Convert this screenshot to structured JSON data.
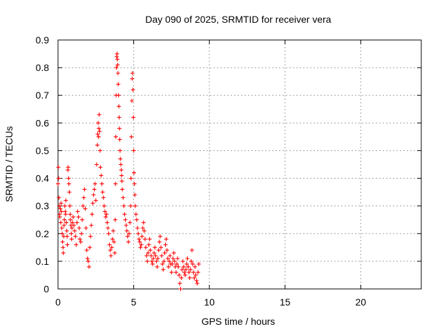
{
  "chart_data": {
    "type": "scatter",
    "title": "Day 090 of 2025, SRMTID for receiver vera",
    "xlabel": "GPS time / hours",
    "ylabel": "SRMTID / TECUs",
    "xlim": [
      0,
      24
    ],
    "ylim": [
      0,
      0.9
    ],
    "xticks": [
      0,
      5,
      10,
      15,
      20
    ],
    "yticks": [
      0,
      0.1,
      0.2,
      0.3,
      0.4,
      0.5,
      0.6,
      0.7,
      0.8,
      0.9
    ],
    "xtick_labels": [
      "0",
      "5",
      "10",
      "15",
      "20"
    ],
    "ytick_labels": [
      "0",
      "0.1",
      "0.2",
      "0.3",
      "0.4",
      "0.5",
      "0.6",
      "0.7",
      "0.8",
      "0.9"
    ],
    "grid": true,
    "marker": "+",
    "color": "#ff0000",
    "series": [
      {
        "name": "SRMTID",
        "points": [
          [
            0.0,
            0.38
          ],
          [
            0.02,
            0.44
          ],
          [
            0.04,
            0.4
          ],
          [
            0.06,
            0.33
          ],
          [
            0.08,
            0.3
          ],
          [
            0.1,
            0.27
          ],
          [
            0.12,
            0.26
          ],
          [
            0.15,
            0.29
          ],
          [
            0.18,
            0.24
          ],
          [
            0.2,
            0.31
          ],
          [
            0.22,
            0.28
          ],
          [
            0.25,
            0.22
          ],
          [
            0.28,
            0.2
          ],
          [
            0.3,
            0.17
          ],
          [
            0.33,
            0.15
          ],
          [
            0.35,
            0.13
          ],
          [
            0.38,
            0.19
          ],
          [
            0.4,
            0.23
          ],
          [
            0.42,
            0.25
          ],
          [
            0.45,
            0.3
          ],
          [
            0.48,
            0.28
          ],
          [
            0.5,
            0.27
          ],
          [
            0.52,
            0.32
          ],
          [
            0.55,
            0.24
          ],
          [
            0.58,
            0.21
          ],
          [
            0.6,
            0.19
          ],
          [
            0.62,
            0.16
          ],
          [
            0.65,
            0.43
          ],
          [
            0.67,
            0.44
          ],
          [
            0.7,
            0.4
          ],
          [
            0.72,
            0.38
          ],
          [
            0.75,
            0.35
          ],
          [
            0.78,
            0.3
          ],
          [
            0.8,
            0.27
          ],
          [
            0.82,
            0.25
          ],
          [
            0.85,
            0.23
          ],
          [
            0.88,
            0.2
          ],
          [
            0.9,
            0.18
          ],
          [
            0.92,
            0.22
          ],
          [
            0.95,
            0.24
          ],
          [
            1.0,
            0.26
          ],
          [
            1.05,
            0.23
          ],
          [
            1.1,
            0.21
          ],
          [
            1.15,
            0.19
          ],
          [
            1.2,
            0.16
          ],
          [
            1.25,
            0.24
          ],
          [
            1.3,
            0.28
          ],
          [
            1.35,
            0.26
          ],
          [
            1.4,
            0.22
          ],
          [
            1.45,
            0.18
          ],
          [
            1.5,
            0.17
          ],
          [
            1.55,
            0.2
          ],
          [
            1.6,
            0.25
          ],
          [
            1.65,
            0.3
          ],
          [
            1.7,
            0.33
          ],
          [
            1.75,
            0.36
          ],
          [
            1.8,
            0.29
          ],
          [
            1.85,
            0.22
          ],
          [
            1.9,
            0.14
          ],
          [
            1.95,
            0.11
          ],
          [
            2.0,
            0.1
          ],
          [
            2.05,
            0.08
          ],
          [
            2.1,
            0.15
          ],
          [
            2.15,
            0.19
          ],
          [
            2.2,
            0.23
          ],
          [
            2.25,
            0.27
          ],
          [
            2.3,
            0.31
          ],
          [
            2.35,
            0.34
          ],
          [
            2.4,
            0.36
          ],
          [
            2.45,
            0.38
          ],
          [
            2.5,
            0.32
          ],
          [
            2.55,
            0.45
          ],
          [
            2.6,
            0.52
          ],
          [
            2.62,
            0.56
          ],
          [
            2.65,
            0.6
          ],
          [
            2.68,
            0.55
          ],
          [
            2.7,
            0.58
          ],
          [
            2.72,
            0.63
          ],
          [
            2.75,
            0.57
          ],
          [
            2.78,
            0.5
          ],
          [
            2.8,
            0.44
          ],
          [
            2.85,
            0.41
          ],
          [
            2.9,
            0.38
          ],
          [
            2.95,
            0.35
          ],
          [
            3.0,
            0.33
          ],
          [
            3.05,
            0.3
          ],
          [
            3.1,
            0.28
          ],
          [
            3.15,
            0.26
          ],
          [
            3.2,
            0.27
          ],
          [
            3.25,
            0.24
          ],
          [
            3.3,
            0.22
          ],
          [
            3.35,
            0.2
          ],
          [
            3.4,
            0.16
          ],
          [
            3.45,
            0.14
          ],
          [
            3.5,
            0.12
          ],
          [
            3.55,
            0.15
          ],
          [
            3.6,
            0.18
          ],
          [
            3.65,
            0.21
          ],
          [
            3.7,
            0.17
          ],
          [
            3.75,
            0.13
          ],
          [
            3.78,
            0.25
          ],
          [
            3.8,
            0.38
          ],
          [
            3.82,
            0.55
          ],
          [
            3.84,
            0.7
          ],
          [
            3.86,
            0.8
          ],
          [
            3.88,
            0.84
          ],
          [
            3.9,
            0.85
          ],
          [
            3.92,
            0.83
          ],
          [
            3.94,
            0.81
          ],
          [
            3.96,
            0.78
          ],
          [
            3.98,
            0.74
          ],
          [
            4.0,
            0.7
          ],
          [
            4.02,
            0.66
          ],
          [
            4.04,
            0.62
          ],
          [
            4.06,
            0.58
          ],
          [
            4.08,
            0.54
          ],
          [
            4.1,
            0.5
          ],
          [
            4.12,
            0.47
          ],
          [
            4.15,
            0.45
          ],
          [
            4.18,
            0.43
          ],
          [
            4.2,
            0.41
          ],
          [
            4.22,
            0.39
          ],
          [
            4.25,
            0.36
          ],
          [
            4.3,
            0.33
          ],
          [
            4.35,
            0.3
          ],
          [
            4.4,
            0.27
          ],
          [
            4.45,
            0.25
          ],
          [
            4.5,
            0.23
          ],
          [
            4.55,
            0.21
          ],
          [
            4.6,
            0.19
          ],
          [
            4.65,
            0.17
          ],
          [
            4.7,
            0.2
          ],
          [
            4.75,
            0.24
          ],
          [
            4.8,
            0.3
          ],
          [
            4.82,
            0.4
          ],
          [
            4.85,
            0.55
          ],
          [
            4.88,
            0.68
          ],
          [
            4.9,
            0.76
          ],
          [
            4.92,
            0.78
          ],
          [
            4.95,
            0.72
          ],
          [
            4.98,
            0.62
          ],
          [
            5.0,
            0.5
          ],
          [
            5.02,
            0.42
          ],
          [
            5.05,
            0.38
          ],
          [
            5.08,
            0.34
          ],
          [
            5.1,
            0.3
          ],
          [
            5.15,
            0.27
          ],
          [
            5.2,
            0.25
          ],
          [
            5.25,
            0.22
          ],
          [
            5.3,
            0.2
          ],
          [
            5.35,
            0.18
          ],
          [
            5.4,
            0.17
          ],
          [
            5.45,
            0.15
          ],
          [
            5.5,
            0.16
          ],
          [
            5.55,
            0.19
          ],
          [
            5.6,
            0.22
          ],
          [
            5.65,
            0.24
          ],
          [
            5.7,
            0.21
          ],
          [
            5.75,
            0.18
          ],
          [
            5.8,
            0.15
          ],
          [
            5.85,
            0.12
          ],
          [
            5.9,
            0.1
          ],
          [
            5.95,
            0.13
          ],
          [
            6.0,
            0.16
          ],
          [
            6.05,
            0.18
          ],
          [
            6.1,
            0.14
          ],
          [
            6.15,
            0.12
          ],
          [
            6.2,
            0.1
          ],
          [
            6.25,
            0.09
          ],
          [
            6.3,
            0.11
          ],
          [
            6.35,
            0.13
          ],
          [
            6.4,
            0.15
          ],
          [
            6.45,
            0.12
          ],
          [
            6.5,
            0.1
          ],
          [
            6.55,
            0.08
          ],
          [
            6.6,
            0.11
          ],
          [
            6.65,
            0.14
          ],
          [
            6.7,
            0.17
          ],
          [
            6.75,
            0.19
          ],
          [
            6.8,
            0.15
          ],
          [
            6.85,
            0.12
          ],
          [
            6.9,
            0.09
          ],
          [
            6.95,
            0.07
          ],
          [
            7.0,
            0.1
          ],
          [
            7.05,
            0.13
          ],
          [
            7.1,
            0.16
          ],
          [
            7.15,
            0.18
          ],
          [
            7.2,
            0.14
          ],
          [
            7.25,
            0.11
          ],
          [
            7.3,
            0.08
          ],
          [
            7.35,
            0.1
          ],
          [
            7.4,
            0.12
          ],
          [
            7.45,
            0.09
          ],
          [
            7.5,
            0.06
          ],
          [
            7.55,
            0.09
          ],
          [
            7.6,
            0.11
          ],
          [
            7.65,
            0.13
          ],
          [
            7.7,
            0.1
          ],
          [
            7.75,
            0.08
          ],
          [
            7.8,
            0.06
          ],
          [
            7.85,
            0.09
          ],
          [
            7.9,
            0.11
          ],
          [
            7.95,
            0.08
          ],
          [
            8.0,
            0.05
          ],
          [
            8.05,
            0.02
          ],
          [
            8.1,
            0.0
          ],
          [
            8.15,
            0.04
          ],
          [
            8.2,
            0.07
          ],
          [
            8.25,
            0.1
          ],
          [
            8.3,
            0.08
          ],
          [
            8.35,
            0.06
          ],
          [
            8.4,
            0.05
          ],
          [
            8.45,
            0.07
          ],
          [
            8.5,
            0.09
          ],
          [
            8.55,
            0.11
          ],
          [
            8.6,
            0.08
          ],
          [
            8.65,
            0.06
          ],
          [
            8.7,
            0.04
          ],
          [
            8.75,
            0.07
          ],
          [
            8.8,
            0.1
          ],
          [
            8.85,
            0.14
          ],
          [
            8.9,
            0.09
          ],
          [
            8.95,
            0.06
          ],
          [
            9.0,
            0.04
          ],
          [
            9.05,
            0.08
          ],
          [
            9.1,
            0.05
          ],
          [
            9.15,
            0.03
          ],
          [
            9.2,
            0.02
          ],
          [
            9.25,
            0.06
          ],
          [
            9.3,
            0.09
          ]
        ]
      }
    ]
  }
}
